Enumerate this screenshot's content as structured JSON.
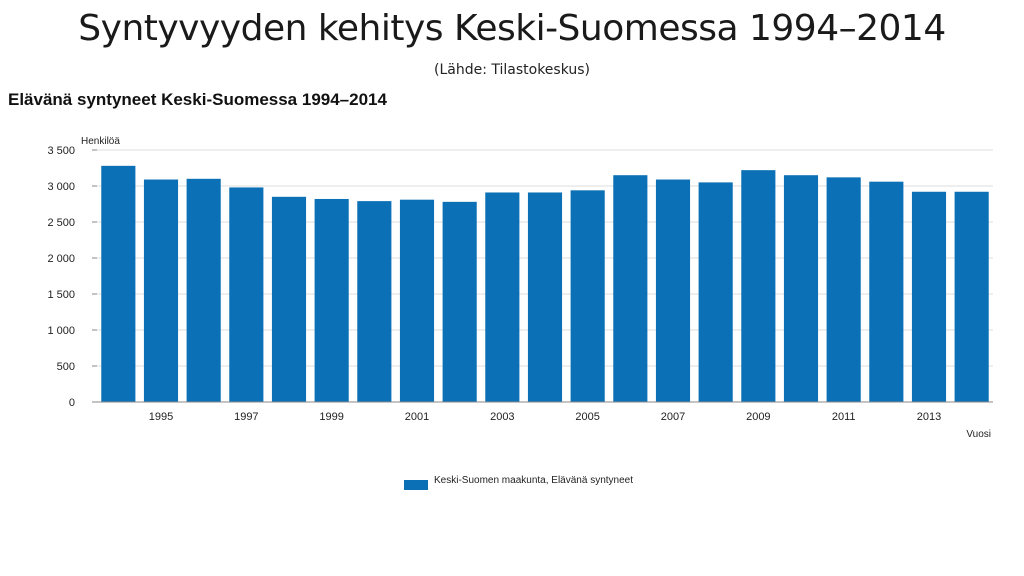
{
  "slide": {
    "title": "Syntyvyyden kehitys Keski-Suomessa  1994–2014",
    "subtitle": "(Lähde:  Tilastokeskus)"
  },
  "chart_data": {
    "type": "bar",
    "title": "Elävänä syntyneet Keski-Suomessa 1994–2014",
    "xlabel": "Vuosi",
    "ylabel": "Henkilöä",
    "x": [
      1994,
      1995,
      1996,
      1997,
      1998,
      1999,
      2000,
      2001,
      2002,
      2003,
      2004,
      2005,
      2006,
      2007,
      2008,
      2009,
      2010,
      2011,
      2012,
      2013,
      2014
    ],
    "x_tick_labels": [
      "1995",
      "1997",
      "1999",
      "2001",
      "2003",
      "2005",
      "2007",
      "2009",
      "2011",
      "2013"
    ],
    "x_tick_values": [
      1995,
      1997,
      1999,
      2001,
      2003,
      2005,
      2007,
      2009,
      2011,
      2013
    ],
    "series": [
      {
        "name": "Keski-Suomen maakunta, Elävänä syntyneet",
        "values": [
          3280,
          3090,
          3100,
          2980,
          2850,
          2820,
          2790,
          2810,
          2780,
          2910,
          2910,
          2940,
          3150,
          3090,
          3050,
          3220,
          3150,
          3120,
          3060,
          2920,
          2920
        ]
      }
    ],
    "y_ticks": [
      0,
      500,
      1000,
      1500,
      2000,
      2500,
      3000,
      3500
    ],
    "y_tick_labels": [
      "0",
      "500",
      "1 000",
      "1 500",
      "2 000",
      "2 500",
      "3 000",
      "3 500"
    ],
    "ylim": [
      0,
      3500
    ],
    "grid": true,
    "legend_position": "bottom",
    "colors": {
      "bar": "#0b70b5",
      "grid": "#dddddd",
      "axis": "#888888"
    }
  }
}
